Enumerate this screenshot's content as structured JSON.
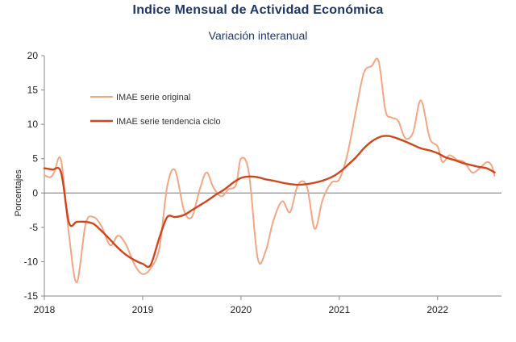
{
  "chart_data": {
    "type": "line",
    "title": "Indice Mensual de  Actividad Económica",
    "subtitle": "Variación interanual",
    "ylabel": "Porcentajes",
    "ylim": [
      -15,
      20
    ],
    "yticks": [
      20,
      15,
      10,
      5,
      0,
      -5,
      -10,
      -15
    ],
    "xlim": [
      2018,
      2022.65
    ],
    "xticks": [
      "2018",
      "2019",
      "2020",
      "2021",
      "2022"
    ],
    "grid": false,
    "legend_position": "top-left",
    "series": [
      {
        "name": "IMAE serie original",
        "color": "#f4a582",
        "points": [
          [
            2018.0,
            2.6
          ],
          [
            2018.06,
            2.3
          ],
          [
            2018.1,
            3.0
          ],
          [
            2018.17,
            4.8
          ],
          [
            2018.25,
            -6.0
          ],
          [
            2018.33,
            -13.0
          ],
          [
            2018.42,
            -4.5
          ],
          [
            2018.5,
            -3.5
          ],
          [
            2018.58,
            -4.8
          ],
          [
            2018.67,
            -7.6
          ],
          [
            2018.75,
            -6.2
          ],
          [
            2018.83,
            -7.5
          ],
          [
            2018.92,
            -10.5
          ],
          [
            2019.0,
            -11.8
          ],
          [
            2019.08,
            -11.0
          ],
          [
            2019.17,
            -8.0
          ],
          [
            2019.25,
            1.0
          ],
          [
            2019.33,
            3.3
          ],
          [
            2019.42,
            -2.5
          ],
          [
            2019.5,
            -3.5
          ],
          [
            2019.58,
            0.5
          ],
          [
            2019.65,
            3.0
          ],
          [
            2019.72,
            0.8
          ],
          [
            2019.8,
            -0.5
          ],
          [
            2019.87,
            0.5
          ],
          [
            2019.95,
            1.2
          ],
          [
            2020.0,
            5.0
          ],
          [
            2020.08,
            3.0
          ],
          [
            2020.17,
            -9.5
          ],
          [
            2020.25,
            -8.5
          ],
          [
            2020.33,
            -4.0
          ],
          [
            2020.42,
            -1.2
          ],
          [
            2020.5,
            -2.8
          ],
          [
            2020.58,
            1.2
          ],
          [
            2020.67,
            1.0
          ],
          [
            2020.75,
            -5.2
          ],
          [
            2020.83,
            -1.0
          ],
          [
            2020.92,
            1.5
          ],
          [
            2021.0,
            2.0
          ],
          [
            2021.08,
            5.5
          ],
          [
            2021.17,
            12.0
          ],
          [
            2021.25,
            17.5
          ],
          [
            2021.33,
            18.5
          ],
          [
            2021.4,
            19.2
          ],
          [
            2021.47,
            12.0
          ],
          [
            2021.53,
            11.0
          ],
          [
            2021.6,
            10.5
          ],
          [
            2021.67,
            8.0
          ],
          [
            2021.75,
            8.8
          ],
          [
            2021.83,
            13.5
          ],
          [
            2021.92,
            8.0
          ],
          [
            2022.0,
            6.8
          ],
          [
            2022.05,
            4.5
          ],
          [
            2022.12,
            5.5
          ],
          [
            2022.2,
            4.8
          ],
          [
            2022.27,
            4.5
          ],
          [
            2022.35,
            3.0
          ],
          [
            2022.42,
            3.5
          ],
          [
            2022.5,
            4.5
          ],
          [
            2022.55,
            4.0
          ],
          [
            2022.58,
            2.5
          ]
        ]
      },
      {
        "name": "IMAE serie  tendencia ciclo",
        "color": "#d0461c",
        "points": [
          [
            2018.0,
            3.6
          ],
          [
            2018.08,
            3.4
          ],
          [
            2018.17,
            3.0
          ],
          [
            2018.25,
            -4.3
          ],
          [
            2018.33,
            -4.2
          ],
          [
            2018.42,
            -4.2
          ],
          [
            2018.5,
            -4.5
          ],
          [
            2018.58,
            -5.5
          ],
          [
            2018.67,
            -6.8
          ],
          [
            2018.75,
            -8.0
          ],
          [
            2018.83,
            -9.0
          ],
          [
            2018.92,
            -9.8
          ],
          [
            2019.0,
            -10.3
          ],
          [
            2019.08,
            -10.5
          ],
          [
            2019.17,
            -6.5
          ],
          [
            2019.25,
            -3.5
          ],
          [
            2019.33,
            -3.5
          ],
          [
            2019.42,
            -3.2
          ],
          [
            2019.5,
            -2.5
          ],
          [
            2019.58,
            -1.8
          ],
          [
            2019.67,
            -1.0
          ],
          [
            2019.75,
            -0.2
          ],
          [
            2019.83,
            0.5
          ],
          [
            2019.92,
            1.5
          ],
          [
            2020.0,
            2.2
          ],
          [
            2020.08,
            2.4
          ],
          [
            2020.17,
            2.3
          ],
          [
            2020.25,
            2.0
          ],
          [
            2020.33,
            1.8
          ],
          [
            2020.42,
            1.5
          ],
          [
            2020.5,
            1.3
          ],
          [
            2020.58,
            1.2
          ],
          [
            2020.67,
            1.3
          ],
          [
            2020.75,
            1.5
          ],
          [
            2020.83,
            1.8
          ],
          [
            2020.92,
            2.3
          ],
          [
            2021.0,
            3.0
          ],
          [
            2021.08,
            4.0
          ],
          [
            2021.17,
            5.2
          ],
          [
            2021.25,
            6.5
          ],
          [
            2021.33,
            7.5
          ],
          [
            2021.42,
            8.2
          ],
          [
            2021.5,
            8.3
          ],
          [
            2021.58,
            8.0
          ],
          [
            2021.67,
            7.5
          ],
          [
            2021.75,
            7.0
          ],
          [
            2021.83,
            6.5
          ],
          [
            2021.92,
            6.2
          ],
          [
            2022.0,
            5.8
          ],
          [
            2022.08,
            5.2
          ],
          [
            2022.17,
            4.8
          ],
          [
            2022.25,
            4.4
          ],
          [
            2022.33,
            4.1
          ],
          [
            2022.42,
            3.8
          ],
          [
            2022.5,
            3.6
          ],
          [
            2022.58,
            3.0
          ]
        ]
      }
    ]
  }
}
